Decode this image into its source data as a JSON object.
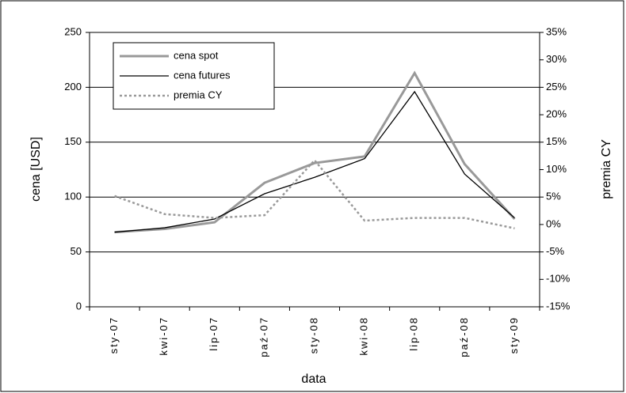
{
  "chart_data": {
    "type": "line",
    "x_label": "data",
    "y_label": "cena [USD]",
    "y2_label": "premia CY",
    "categories": [
      "sty-07",
      "kwi-07",
      "lip-07",
      "paź-07",
      "sty-08",
      "kwi-08",
      "lip-08",
      "paź-08",
      "sty-09"
    ],
    "series": [
      {
        "name": "cena spot",
        "color": "#999999",
        "style": "solid",
        "values": [
          68,
          71,
          77,
          113,
          131,
          137,
          213,
          130,
          80
        ]
      },
      {
        "name": "cena futures",
        "color": "#000000",
        "style": "solid",
        "values": [
          68,
          72,
          80,
          103,
          118,
          135,
          196,
          121,
          81
        ]
      },
      {
        "name": "premia CY",
        "color": "#999999",
        "style": "dotted",
        "axis": "y2",
        "values": [
          5.2,
          1.9,
          1.2,
          1.7,
          11.7,
          0.7,
          1.2,
          1.2,
          -0.7
        ]
      }
    ],
    "ylim": [
      0,
      250
    ],
    "yticks": [
      0,
      50,
      100,
      150,
      200,
      250
    ],
    "y2lim": [
      -15,
      35
    ],
    "y2ticks": [
      {
        "value": -15,
        "label": "-15%"
      },
      {
        "value": -10,
        "label": "-10%"
      },
      {
        "value": -5,
        "label": "-5%"
      },
      {
        "value": 0,
        "label": "0%"
      },
      {
        "value": 5,
        "label": "5%"
      },
      {
        "value": 10,
        "label": "10%"
      },
      {
        "value": 15,
        "label": "15%"
      },
      {
        "value": 20,
        "label": "20%"
      },
      {
        "value": 25,
        "label": "25%"
      },
      {
        "value": 30,
        "label": "30%"
      },
      {
        "value": 35,
        "label": "35%"
      }
    ],
    "grid": true,
    "legend": "upper left"
  }
}
